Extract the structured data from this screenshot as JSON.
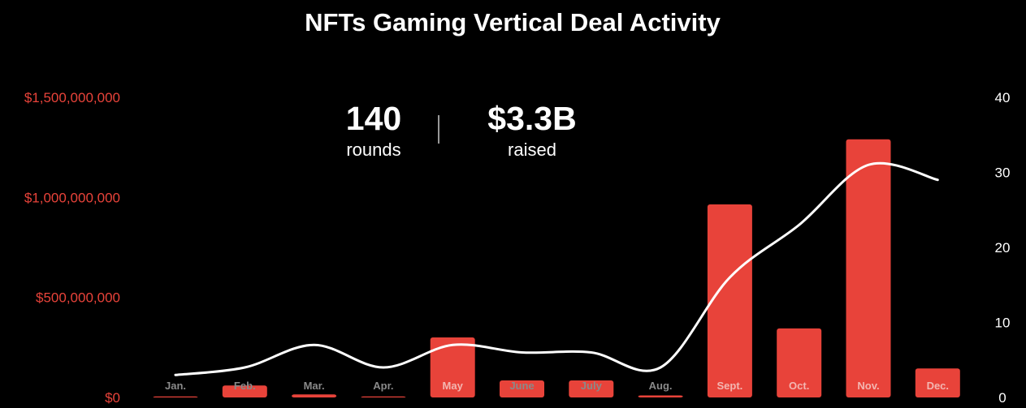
{
  "chart_data": {
    "type": "bar",
    "title": "NFTs Gaming Vertical Deal Activity",
    "categories": [
      "Jan.",
      "Feb.",
      "Mar.",
      "Apr.",
      "May",
      "June",
      "July",
      "Aug.",
      "Sept.",
      "Oct.",
      "Nov.",
      "Dec."
    ],
    "series": [
      {
        "type": "bar",
        "axis": "left",
        "color": "#e8433a",
        "values": [
          5000000,
          60000000,
          15000000,
          5000000,
          300000000,
          85000000,
          85000000,
          10000000,
          965000000,
          345000000,
          1290000000,
          145000000
        ]
      },
      {
        "type": "line",
        "axis": "right",
        "color": "#ffffff",
        "smooth": true,
        "values": [
          3,
          4,
          7,
          4,
          7,
          6,
          6,
          4,
          16,
          23,
          31,
          29
        ]
      }
    ],
    "y_left": {
      "ticks": [
        0,
        500000000,
        1000000000,
        1500000000
      ],
      "tick_labels": [
        "$0",
        "$500,000,000",
        "$1,000,000,000",
        "$1,500,000,000"
      ],
      "ylim": [
        0,
        1500000000
      ],
      "color": "#e8433a"
    },
    "y_right": {
      "ticks": [
        0,
        10,
        20,
        30,
        40
      ],
      "tick_labels": [
        "0",
        "10",
        "20",
        "30",
        "40"
      ],
      "ylim": [
        0,
        40
      ]
    },
    "grid": false,
    "legend": "none",
    "annotations": [
      {
        "value": "140",
        "caption": "rounds"
      },
      {
        "value": "$3.3B",
        "caption": "raised"
      }
    ]
  },
  "colors": {
    "background": "#000000",
    "bar": "#e8433a",
    "line": "#ffffff",
    "label_on_bar": "#f3b6b1",
    "label_off_bar": "#8a8a8a"
  }
}
